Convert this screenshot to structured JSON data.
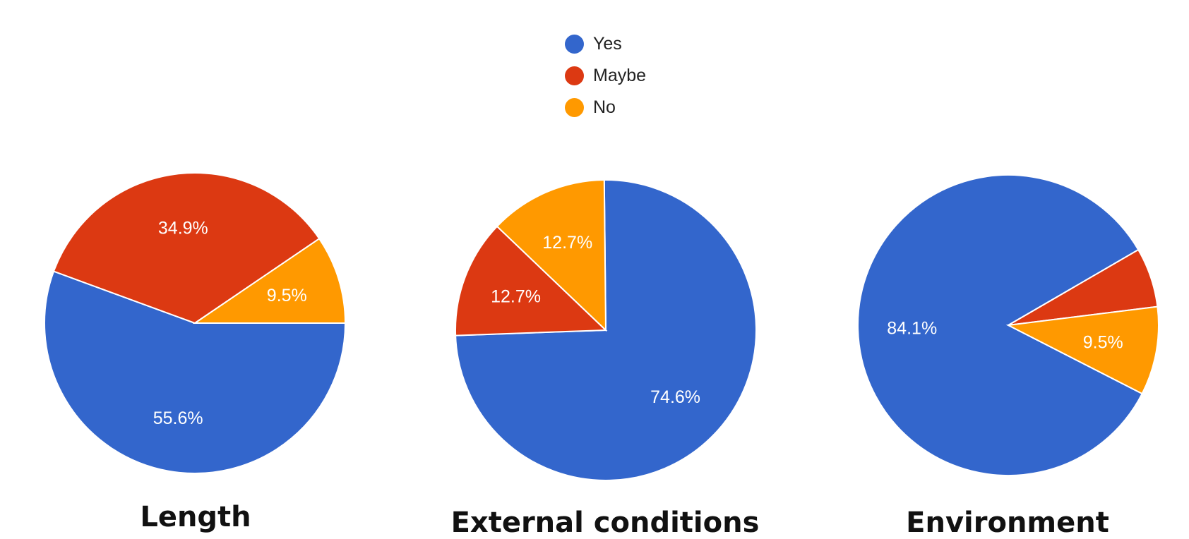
{
  "colors": {
    "Yes": "#3366cc",
    "Maybe": "#dc3912",
    "No": "#ff9900"
  },
  "legend": {
    "items": [
      {
        "label": "Yes",
        "color": "#3366cc"
      },
      {
        "label": "Maybe",
        "color": "#dc3912"
      },
      {
        "label": "No",
        "color": "#ff9900"
      }
    ]
  },
  "chart_data": [
    {
      "type": "pie",
      "title": "Length",
      "slices": [
        {
          "label": "Yes",
          "value": 55.6,
          "display": "55.6%"
        },
        {
          "label": "Maybe",
          "value": 34.9,
          "display": "34.9%"
        },
        {
          "label": "No",
          "value": 9.5,
          "display": "9.5%"
        }
      ]
    },
    {
      "type": "pie",
      "title": "External conditions",
      "slices": [
        {
          "label": "Yes",
          "value": 74.6,
          "display": "74.6%"
        },
        {
          "label": "Maybe",
          "value": 12.7,
          "display": "12.7%"
        },
        {
          "label": "No",
          "value": 12.7,
          "display": "12.7%"
        }
      ]
    },
    {
      "type": "pie",
      "title": "Environment",
      "slices": [
        {
          "label": "Yes",
          "value": 84.1,
          "display": "84.1%"
        },
        {
          "label": "Maybe",
          "value": 6.4,
          "display": ""
        },
        {
          "label": "No",
          "value": 9.5,
          "display": "9.5%"
        }
      ]
    }
  ]
}
